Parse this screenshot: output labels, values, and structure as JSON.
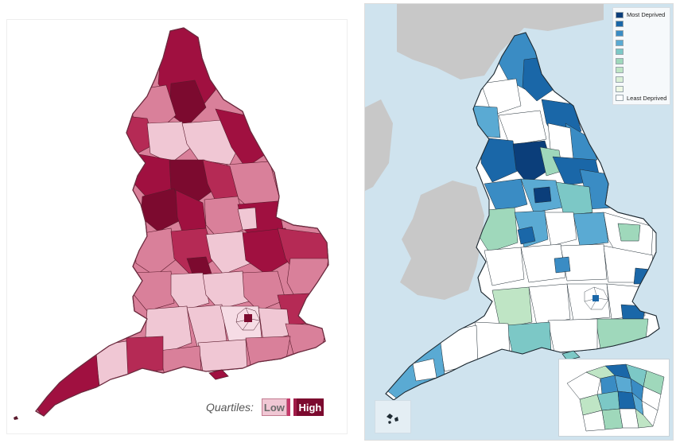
{
  "left_map": {
    "legend": {
      "title": "Quartiles:",
      "low_label": "Low",
      "high_label": "High",
      "colors": [
        "#f0c7d4",
        "#d9809a",
        "#b52a55",
        "#7c0a2f"
      ]
    }
  },
  "right_map": {
    "legend": {
      "entries": [
        {
          "label": "Most Deprived",
          "color": "#0b3e7a"
        },
        {
          "label": "",
          "color": "#1a67a8"
        },
        {
          "label": "",
          "color": "#3a8cc4"
        },
        {
          "label": "",
          "color": "#5aaad3"
        },
        {
          "label": "",
          "color": "#7cc8c6"
        },
        {
          "label": "",
          "color": "#9fd8bb"
        },
        {
          "label": "",
          "color": "#bfe5c5"
        },
        {
          "label": "",
          "color": "#daf0d6"
        },
        {
          "label": "",
          "color": "#eef8e4"
        },
        {
          "label": "Least Deprived",
          "color": "#ffffff"
        }
      ]
    },
    "colors": {
      "sea": "#cfe3ee",
      "land_outside": "#c8c8c8",
      "border": "#1f2b33"
    }
  }
}
